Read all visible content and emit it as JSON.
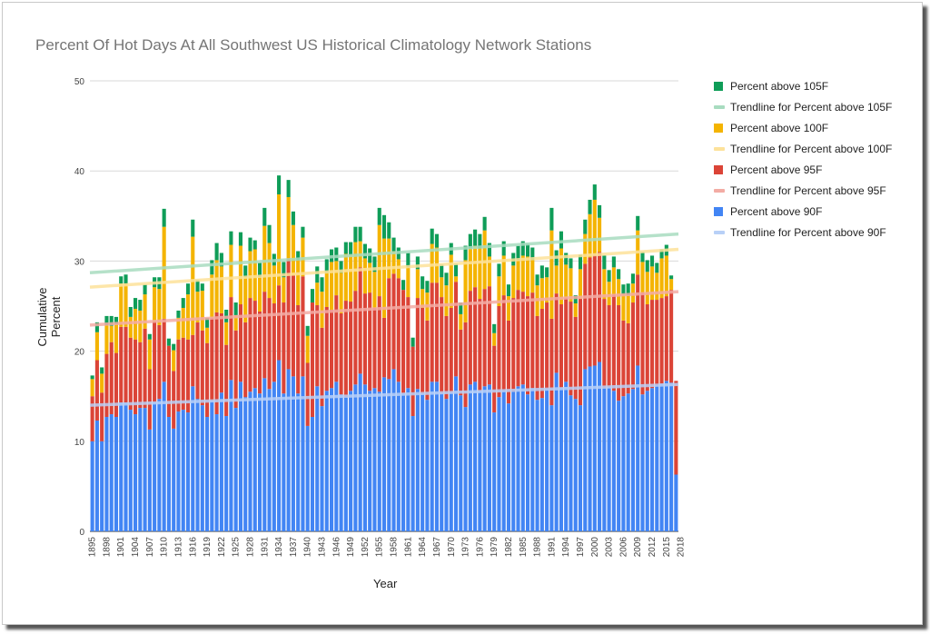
{
  "chart_data": {
    "type": "bar",
    "stacked": true,
    "title": "Percent Of Hot Days At All Southwest US Historical Climatology Network Stations",
    "xlabel": "Year",
    "ylabel": "Cumulative Percent",
    "ylim": [
      0,
      50
    ],
    "yticks": [
      0,
      10,
      20,
      30,
      40,
      50
    ],
    "grid": true,
    "legend_position": "right",
    "x_start": 1895,
    "x_end": 2019,
    "x_tick_labels": [
      "1895",
      "1898",
      "1901",
      "1904",
      "1907",
      "1910",
      "1913",
      "1916",
      "1919",
      "1922",
      "1925",
      "1928",
      "1931",
      "1934",
      "1937",
      "1940",
      "1943",
      "1946",
      "1949",
      "1952",
      "1955",
      "1958",
      "1961",
      "1964",
      "1967",
      "1970",
      "1973",
      "1976",
      "1979",
      "1982",
      "1985",
      "1988",
      "1991",
      "1994",
      "1997",
      "2000",
      "2003",
      "2006",
      "2009",
      "2012",
      "2015",
      "2018"
    ],
    "series": [
      {
        "name": "Percent above 90F",
        "color": "#4285f4",
        "values": [
          10,
          12.3,
          10,
          12.7,
          13,
          12.7,
          14.3,
          14.3,
          13.5,
          13,
          13.7,
          13.7,
          11.3,
          14.3,
          14.7,
          16.6,
          12.7,
          11.4,
          13.3,
          13.5,
          13.2,
          16.1,
          14.7,
          14,
          12.7,
          14.5,
          13,
          15.4,
          12.8,
          16.8,
          13.7,
          16.6,
          14.9,
          15.5,
          15.9,
          15.3,
          17,
          15.8,
          16.6,
          19,
          15.3,
          18,
          17.2,
          15.3,
          17.2,
          11.7,
          12.7,
          16.1,
          13.9,
          15.6,
          15.9,
          16.6,
          15.2,
          14.9,
          15.6,
          16.3,
          17.5,
          16.3,
          15.6,
          15.9,
          15.5,
          17.1,
          16.9,
          18,
          16.6,
          15.3,
          15.9,
          12.8,
          15.8,
          15.3,
          14.6,
          16.6,
          16.6,
          15.3,
          14.7,
          15.4,
          17.2,
          15.1,
          13.8,
          16.3,
          16.6,
          15.6,
          16.1,
          16.3,
          13.2,
          14.9,
          15.6,
          14.2,
          15.5,
          16.1,
          16.3,
          15.2,
          15.9,
          14.6,
          14.8,
          15.8,
          14,
          17.6,
          15.9,
          16.6,
          15.1,
          14.7,
          14,
          18,
          18.3,
          18.4,
          18.8,
          15.9,
          16,
          15.6,
          14.5,
          15,
          15.3,
          15.8,
          18.4,
          15.2,
          15.6,
          15.9,
          16.2,
          16.4,
          16.7,
          16.5,
          6.3
        ]
      },
      {
        "name": "Percent above 95F",
        "color": "#db4437",
        "values": [
          5,
          6.7,
          5.4,
          7,
          8,
          7.1,
          8.4,
          8.4,
          8,
          8.3,
          7.3,
          8.8,
          6.7,
          9,
          8.2,
          7,
          7.9,
          6.4,
          8,
          8,
          8.1,
          5.7,
          8.5,
          8.3,
          8.2,
          9.2,
          11.3,
          8.8,
          7.9,
          9.2,
          8.6,
          8.6,
          8.3,
          10.4,
          9.7,
          9.1,
          9.6,
          10.1,
          8.7,
          8.3,
          10.1,
          12.3,
          11.2,
          9.8,
          11.1,
          7,
          12.7,
          9,
          8.7,
          9.3,
          8.7,
          9.6,
          9,
          10.7,
          9.9,
          10.4,
          11.8,
          10.1,
          10.9,
          8.9,
          10.6,
          6.6,
          11.2,
          10.6,
          11.5,
          11.5,
          10.1,
          7.7,
          10.1,
          9.5,
          8.8,
          11,
          11,
          10.7,
          9.2,
          9.4,
          10.5,
          7.3,
          9.4,
          10.4,
          10.5,
          10.2,
          10.8,
          10.9,
          7.4,
          10.1,
          10.6,
          9.2,
          10.4,
          10.7,
          10.3,
          10.9,
          10.6,
          9.3,
          9.9,
          9.6,
          9.6,
          8.8,
          9.3,
          9.3,
          10.4,
          9.1,
          11.8,
          11.7,
          12.1,
          12.3,
          12.2,
          9.9,
          9.1,
          10.7,
          10.6,
          8.4,
          7.8,
          9.6,
          10.1,
          11.3,
          9.6,
          9.8,
          9.5,
          9.5,
          9.4,
          10.3,
          10.4,
          3
        ]
      },
      {
        "name": "Percent above 100F",
        "color": "#f4b400",
        "values": [
          1.9,
          3.1,
          2.1,
          3.2,
          1.8,
          3.2,
          4.8,
          4.8,
          2.3,
          3.4,
          3.5,
          3.8,
          3.3,
          3.8,
          4,
          10.2,
          0,
          2.3,
          2.4,
          3.3,
          5,
          10.9,
          3.4,
          4.4,
          1.7,
          4.8,
          5.8,
          5.2,
          2.5,
          5.8,
          1.7,
          6.5,
          5,
          5.2,
          5.7,
          3.8,
          7.3,
          6.1,
          4.2,
          10.1,
          2.8,
          6.8,
          5.6,
          5,
          4.3,
          3,
          0,
          2.5,
          4,
          3.8,
          5.3,
          3.8,
          4.5,
          5.2,
          5.2,
          5.4,
          2.9,
          3.9,
          3.3,
          4,
          7.9,
          8.8,
          4.4,
          2.5,
          2.1,
          0,
          3.3,
          0,
          3.2,
          2.1,
          3.1,
          4.3,
          3.9,
          2.2,
          3.4,
          5.9,
          0.6,
          1.7,
          6.9,
          4.7,
          4.6,
          5.6,
          6.5,
          3.3,
          1.4,
          3.3,
          4.4,
          2.7,
          3.6,
          3.3,
          4,
          4.4,
          3.6,
          3.4,
          3.4,
          2.8,
          9.8,
          3.1,
          6.2,
          3.7,
          3.7,
          1.5,
          3.3,
          3.3,
          4.8,
          6.1,
          3.8,
          3.3,
          2.6,
          3,
          2.9,
          2.9,
          3.1,
          2.1,
          4.9,
          3.4,
          3.6,
          3.7,
          3,
          4.4,
          4.5,
          1.2
        ]
      },
      {
        "name": "Percent above 105F",
        "color": "#0f9d58",
        "values": [
          0.4,
          1.1,
          0.7,
          1,
          1.1,
          0.8,
          0.8,
          1,
          1.1,
          1.2,
          1.2,
          1.1,
          0.6,
          1.1,
          1.3,
          2,
          0.8,
          0.7,
          0.8,
          1.1,
          1.2,
          1.9,
          1.3,
          0.8,
          1.1,
          1.6,
          1.9,
          1.5,
          1.4,
          1.5,
          1.4,
          1.5,
          1.3,
          1.5,
          1,
          1.6,
          2,
          2,
          1.3,
          2.1,
          1.7,
          1.9,
          1.5,
          1,
          1.2,
          1.1,
          1.5,
          1.8,
          1.6,
          1.5,
          1.4,
          1.5,
          1.3,
          1.3,
          1.4,
          1.7,
          1.6,
          1.6,
          1.6,
          1.7,
          1.9,
          2.6,
          1.8,
          1.5,
          1.3,
          1.1,
          1.6,
          1,
          1.4,
          1.4,
          1.3,
          1.7,
          1.5,
          1.4,
          1.4,
          1.3,
          1.4,
          1.3,
          1.6,
          1.6,
          1.8,
          1.6,
          1.5,
          1.5,
          1,
          1.4,
          1.6,
          1.3,
          1.4,
          1.6,
          1.6,
          1.4,
          1.4,
          1.2,
          1.4,
          1.1,
          2.5,
          1.7,
          1.9,
          1.3,
          1.1,
          0.9,
          1.6,
          1.6,
          1.6,
          1.7,
          1.4,
          1.5,
          1.3,
          1.2,
          1.1,
          1.1,
          1.3,
          1.1,
          1.6,
          1.1,
          1.3,
          1.2,
          1.1,
          1,
          1.2,
          0.4
        ]
      }
    ],
    "trendlines": [
      {
        "name": "Trendline for Percent above 105F",
        "color": "#a8dcc0",
        "start": 28.7,
        "end": 33.0
      },
      {
        "name": "Trendline for Percent above 100F",
        "color": "#fde29a",
        "start": 27.1,
        "end": 31.3
      },
      {
        "name": "Trendline for Percent above 95F",
        "color": "#f3aca4",
        "start": 22.9,
        "end": 26.6
      },
      {
        "name": "Trendline for Percent above 90F",
        "color": "#b8d0f7",
        "start": 14.0,
        "end": 16.3
      }
    ],
    "legend": [
      {
        "label": "Percent above 105F",
        "kind": "box",
        "color": "#0f9d58"
      },
      {
        "label": "Trendline for Percent above 105F",
        "kind": "line",
        "color": "#a8dcc0"
      },
      {
        "label": "Percent above 100F",
        "kind": "box",
        "color": "#f4b400"
      },
      {
        "label": "Trendline for Percent above 100F",
        "kind": "line",
        "color": "#fde29a"
      },
      {
        "label": "Percent above 95F",
        "kind": "box",
        "color": "#db4437"
      },
      {
        "label": "Trendline for Percent above 95F",
        "kind": "line",
        "color": "#f3aca4"
      },
      {
        "label": "Percent above 90F",
        "kind": "box",
        "color": "#4285f4"
      },
      {
        "label": "Trendline for Percent above 90F",
        "kind": "line",
        "color": "#b8d0f7"
      }
    ]
  }
}
